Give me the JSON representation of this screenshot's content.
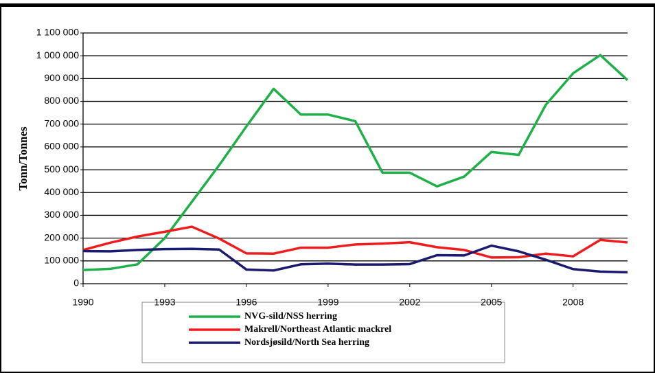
{
  "chart_data": {
    "type": "line",
    "y_label": "Tonn/Tonnes",
    "x": [
      1990,
      1991,
      1992,
      1993,
      1994,
      1995,
      1996,
      1997,
      1998,
      1999,
      2000,
      2001,
      2002,
      2003,
      2004,
      2005,
      2006,
      2007,
      2008,
      2009,
      2010
    ],
    "xlim": [
      1990,
      2010
    ],
    "xticks": [
      1990,
      1993,
      1996,
      1999,
      2002,
      2005,
      2008
    ],
    "ylim": [
      0,
      1100000
    ],
    "yticks": [
      0,
      {
        "value": 100000,
        "label": "100 000"
      },
      {
        "value": 200000,
        "label": "200 000"
      },
      {
        "value": 300000,
        "label": "300 000"
      },
      {
        "value": 400000,
        "label": "400 000"
      },
      {
        "value": 500000,
        "label": "500 000"
      },
      {
        "value": 600000,
        "label": "600 000"
      },
      {
        "value": 700000,
        "label": "700 000"
      },
      {
        "value": 800000,
        "label": "800 000"
      },
      {
        "value": 900000,
        "label": "900 000"
      },
      {
        "value": 1000000,
        "label": "1 000 000"
      },
      {
        "value": 1100000,
        "label": "1 100 000"
      }
    ],
    "grid": true,
    "legend": "bottom",
    "series": [
      {
        "name": "NVG-sild/NSS herring",
        "color": "#1fb04a",
        "values": [
          60000,
          65000,
          85000,
          200000,
          360000,
          520000,
          690000,
          855000,
          742000,
          742000,
          713000,
          487000,
          487000,
          427000,
          470000,
          578000,
          565000,
          785000,
          923000,
          1003000,
          893000
        ]
      },
      {
        "name": "Makrell/Northeast Atlantic mackrel",
        "color": "#ee1c1c",
        "values": [
          148000,
          180000,
          207000,
          228000,
          250000,
          198000,
          133000,
          132000,
          158000,
          158000,
          172000,
          176000,
          182000,
          160000,
          148000,
          115000,
          116000,
          132000,
          120000,
          192000,
          181000
        ]
      },
      {
        "name": "Nordsjøsild/North Sea herring",
        "color": "#1b1a6e",
        "values": [
          143000,
          142000,
          148000,
          152000,
          153000,
          150000,
          62000,
          58000,
          85000,
          88000,
          84000,
          84000,
          86000,
          125000,
          124000,
          167000,
          142000,
          105000,
          64000,
          53000,
          50000
        ]
      }
    ]
  }
}
